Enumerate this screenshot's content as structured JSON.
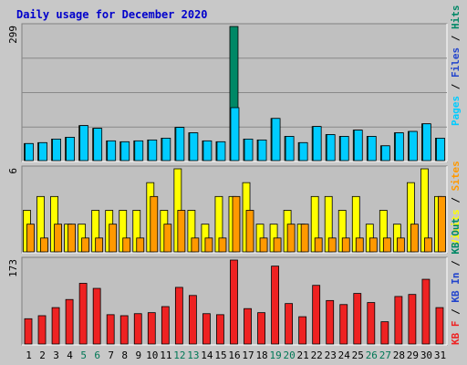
{
  "title": "Daily usage for December 2020",
  "colors": {
    "background": "#c8c8c8",
    "plot_bg": "#c0c0c0",
    "title": "#0000cc",
    "hits": "#008866",
    "files": "#2244cc",
    "pages": "#00ccff",
    "visits": "#ffff00",
    "sites": "#ff9900",
    "kb_out": "#ee7700",
    "kb_in": "#ee2222",
    "weekend_label": "#007755",
    "weekday_label": "#000000"
  },
  "chart_data": {
    "type": "bar",
    "title": "Daily usage for December 2020",
    "days": [
      "1",
      "2",
      "3",
      "4",
      "5",
      "6",
      "7",
      "8",
      "9",
      "10",
      "11",
      "12",
      "13",
      "14",
      "15",
      "16",
      "17",
      "18",
      "19",
      "20",
      "21",
      "22",
      "23",
      "24",
      "25",
      "26",
      "27",
      "28",
      "29",
      "30",
      "31"
    ],
    "weekend_days": [
      "5",
      "6",
      "12",
      "13",
      "19",
      "20",
      "26",
      "27"
    ],
    "panels": [
      {
        "id": "top",
        "max_label": "299",
        "ylim": [
          0,
          299
        ],
        "legend": [
          {
            "text": "Pages",
            "color": "#00ccff"
          },
          {
            "text": "Files",
            "color": "#2244cc"
          },
          {
            "text": "Hits",
            "color": "#008866"
          }
        ],
        "series": [
          {
            "name": "Hits",
            "values": [
              38,
              40,
              48,
              52,
              78,
              72,
              44,
              42,
              44,
              46,
              50,
              74,
              62,
              44,
              42,
              299,
              48,
              46,
              94,
              54,
              40,
              76,
              58,
              54,
              68,
              54,
              33,
              62,
              65,
              82,
              50
            ]
          },
          {
            "name": "Files",
            "values": [
              38,
              40,
              48,
              52,
              78,
              72,
              44,
              42,
              44,
              46,
              50,
              74,
              62,
              44,
              42,
              299,
              48,
              46,
              94,
              54,
              40,
              76,
              58,
              54,
              68,
              54,
              33,
              62,
              65,
              82,
              50
            ]
          },
          {
            "name": "Pages",
            "values": [
              38,
              40,
              48,
              52,
              78,
              72,
              44,
              42,
              44,
              46,
              50,
              74,
              62,
              44,
              42,
              118,
              48,
              46,
              94,
              54,
              40,
              76,
              58,
              54,
              68,
              54,
              33,
              62,
              65,
              82,
              50
            ]
          }
        ]
      },
      {
        "id": "middle",
        "max_label": "6",
        "ylim": [
          0,
          6
        ],
        "legend": [
          {
            "text": "Visits",
            "color": "#ffff00"
          },
          {
            "text": "Sites",
            "color": "#ff9900"
          }
        ],
        "series": [
          {
            "name": "Visits",
            "values": [
              3,
              4,
              4,
              2,
              2,
              3,
              3,
              3,
              3,
              5,
              3,
              6,
              3,
              2,
              4,
              4,
              5,
              2,
              2,
              3,
              2,
              4,
              4,
              3,
              4,
              2,
              3,
              2,
              5,
              6,
              4
            ]
          },
          {
            "name": "Sites",
            "values": [
              2,
              1,
              2,
              2,
              1,
              1,
              2,
              1,
              1,
              4,
              2,
              3,
              1,
              1,
              1,
              4,
              3,
              1,
              1,
              2,
              2,
              1,
              1,
              1,
              1,
              1,
              1,
              1,
              2,
              1,
              4
            ]
          }
        ]
      },
      {
        "id": "bottom",
        "max_label": "173",
        "ylim": [
          0,
          173
        ],
        "legend": [
          {
            "text": "KB F",
            "color": "#ee2222"
          },
          {
            "text": "KB In",
            "color": "#2244cc"
          },
          {
            "text": "KB Out",
            "color": "#008866"
          }
        ],
        "series": [
          {
            "name": "KB Out",
            "values": [
              115,
              118,
              126,
              134,
              150,
              145,
              119,
              118,
              120,
              121,
              127,
              146,
              138,
              120,
              119,
              173,
              125,
              121,
              167,
              130,
              117,
              148,
              133,
              129,
              140,
              131,
              112,
              137,
              139,
              154,
              126
            ]
          }
        ]
      }
    ]
  }
}
